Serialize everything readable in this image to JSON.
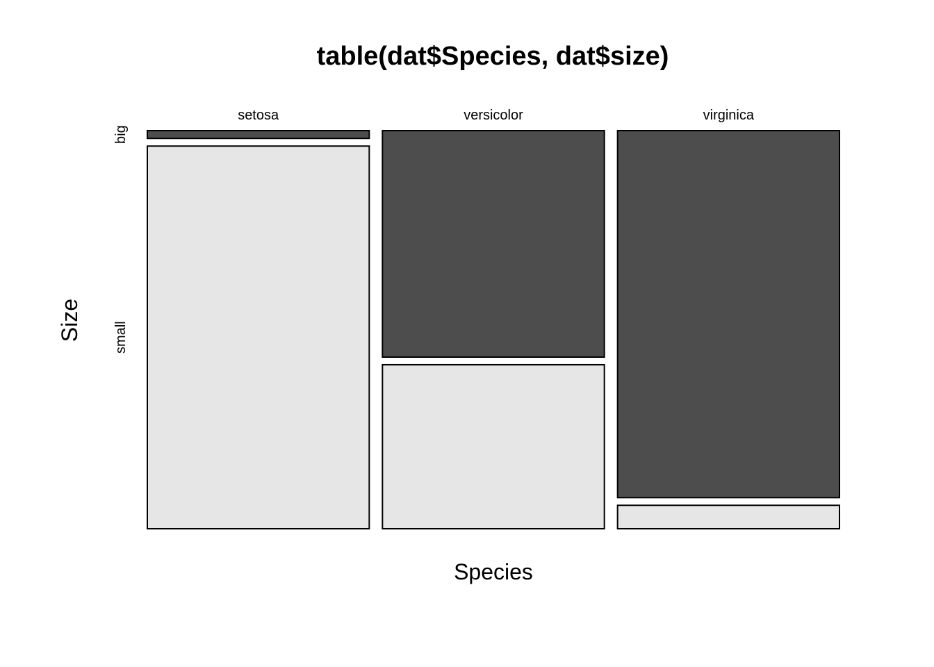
{
  "chart_data": {
    "type": "mosaic",
    "title": "table(dat$Species, dat$size)",
    "xlabel": "Species",
    "ylabel": "Size",
    "categories": [
      "setosa",
      "versicolor",
      "virginica"
    ],
    "levels": [
      "big",
      "small"
    ],
    "level_colors": {
      "big": "#4d4d4d",
      "small": "#e6e6e6"
    },
    "counts": [
      {
        "category": "setosa",
        "big": 1,
        "small": 49
      },
      {
        "category": "versicolor",
        "big": 29,
        "small": 21
      },
      {
        "category": "virginica",
        "big": 47,
        "small": 3
      }
    ]
  }
}
